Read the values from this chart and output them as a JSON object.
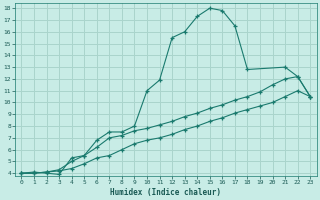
{
  "xlabel": "Humidex (Indice chaleur)",
  "bg_color": "#c8ece6",
  "grid_color": "#aad4cc",
  "line_color": "#1a7a6e",
  "xlim": [
    -0.5,
    23.5
  ],
  "ylim": [
    3.8,
    18.4
  ],
  "xticks": [
    0,
    1,
    2,
    3,
    4,
    5,
    6,
    7,
    8,
    9,
    10,
    11,
    12,
    13,
    14,
    15,
    16,
    17,
    18,
    19,
    20,
    21,
    22,
    23
  ],
  "yticks": [
    4,
    5,
    6,
    7,
    8,
    9,
    10,
    11,
    12,
    13,
    14,
    15,
    16,
    17,
    18
  ],
  "series1_x": [
    0,
    1,
    2,
    3,
    4,
    5,
    6,
    7,
    8,
    9,
    10,
    11,
    12,
    13,
    14,
    15,
    16,
    17,
    18,
    21,
    22,
    23
  ],
  "series1_y": [
    4.0,
    4.1,
    4.0,
    3.9,
    5.3,
    5.5,
    6.8,
    7.5,
    7.5,
    8.0,
    11.0,
    11.9,
    15.5,
    16.0,
    17.3,
    18.0,
    17.8,
    16.5,
    12.8,
    13.0,
    12.2,
    10.5
  ],
  "series2_x": [
    0,
    1,
    2,
    3,
    4,
    5,
    6,
    7,
    8,
    9,
    10,
    11,
    12,
    13,
    14,
    15,
    16,
    17,
    18,
    19,
    20,
    21,
    22,
    23
  ],
  "series2_y": [
    4.0,
    4.0,
    4.1,
    4.2,
    4.4,
    4.8,
    5.3,
    5.5,
    6.0,
    6.5,
    6.8,
    7.0,
    7.3,
    7.7,
    8.0,
    8.4,
    8.7,
    9.1,
    9.4,
    9.7,
    10.0,
    10.5,
    11.0,
    10.5
  ],
  "series3_x": [
    0,
    1,
    2,
    3,
    4,
    5,
    6,
    7,
    8,
    9,
    10,
    11,
    12,
    13,
    14,
    15,
    16,
    17,
    18,
    19,
    20,
    21,
    22,
    23
  ],
  "series3_y": [
    4.0,
    4.0,
    4.1,
    4.3,
    5.0,
    5.5,
    6.2,
    7.0,
    7.2,
    7.6,
    7.8,
    8.1,
    8.4,
    8.8,
    9.1,
    9.5,
    9.8,
    10.2,
    10.5,
    10.9,
    11.5,
    12.0,
    12.2,
    10.5
  ]
}
